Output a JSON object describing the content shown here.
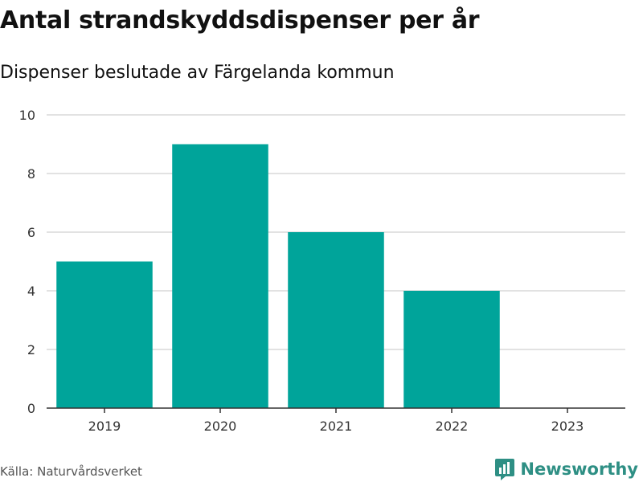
{
  "title": "Antal strandskyddsdispenser per år",
  "subtitle": "Dispenser beslutade av Färgelanda kommun",
  "source": "Källa: Naturvårdsverket",
  "brand": {
    "name": "Newsworthy",
    "icon": "newsworthy-logo-icon",
    "color": "#2e8f84"
  },
  "colors": {
    "bar": "#00a49a",
    "grid": "#d9d9d9",
    "axis": "#333333"
  },
  "chart_data": {
    "type": "bar",
    "title": "Antal strandskyddsdispenser per år",
    "subtitle": "Dispenser beslutade av Färgelanda kommun",
    "categories": [
      "2019",
      "2020",
      "2021",
      "2022",
      "2023"
    ],
    "values": [
      5,
      9,
      6,
      4,
      0
    ],
    "xlabel": "",
    "ylabel": "",
    "ylim": [
      0,
      10
    ],
    "yticks": [
      0,
      2,
      4,
      6,
      8,
      10
    ],
    "grid": true,
    "legend": "none"
  }
}
